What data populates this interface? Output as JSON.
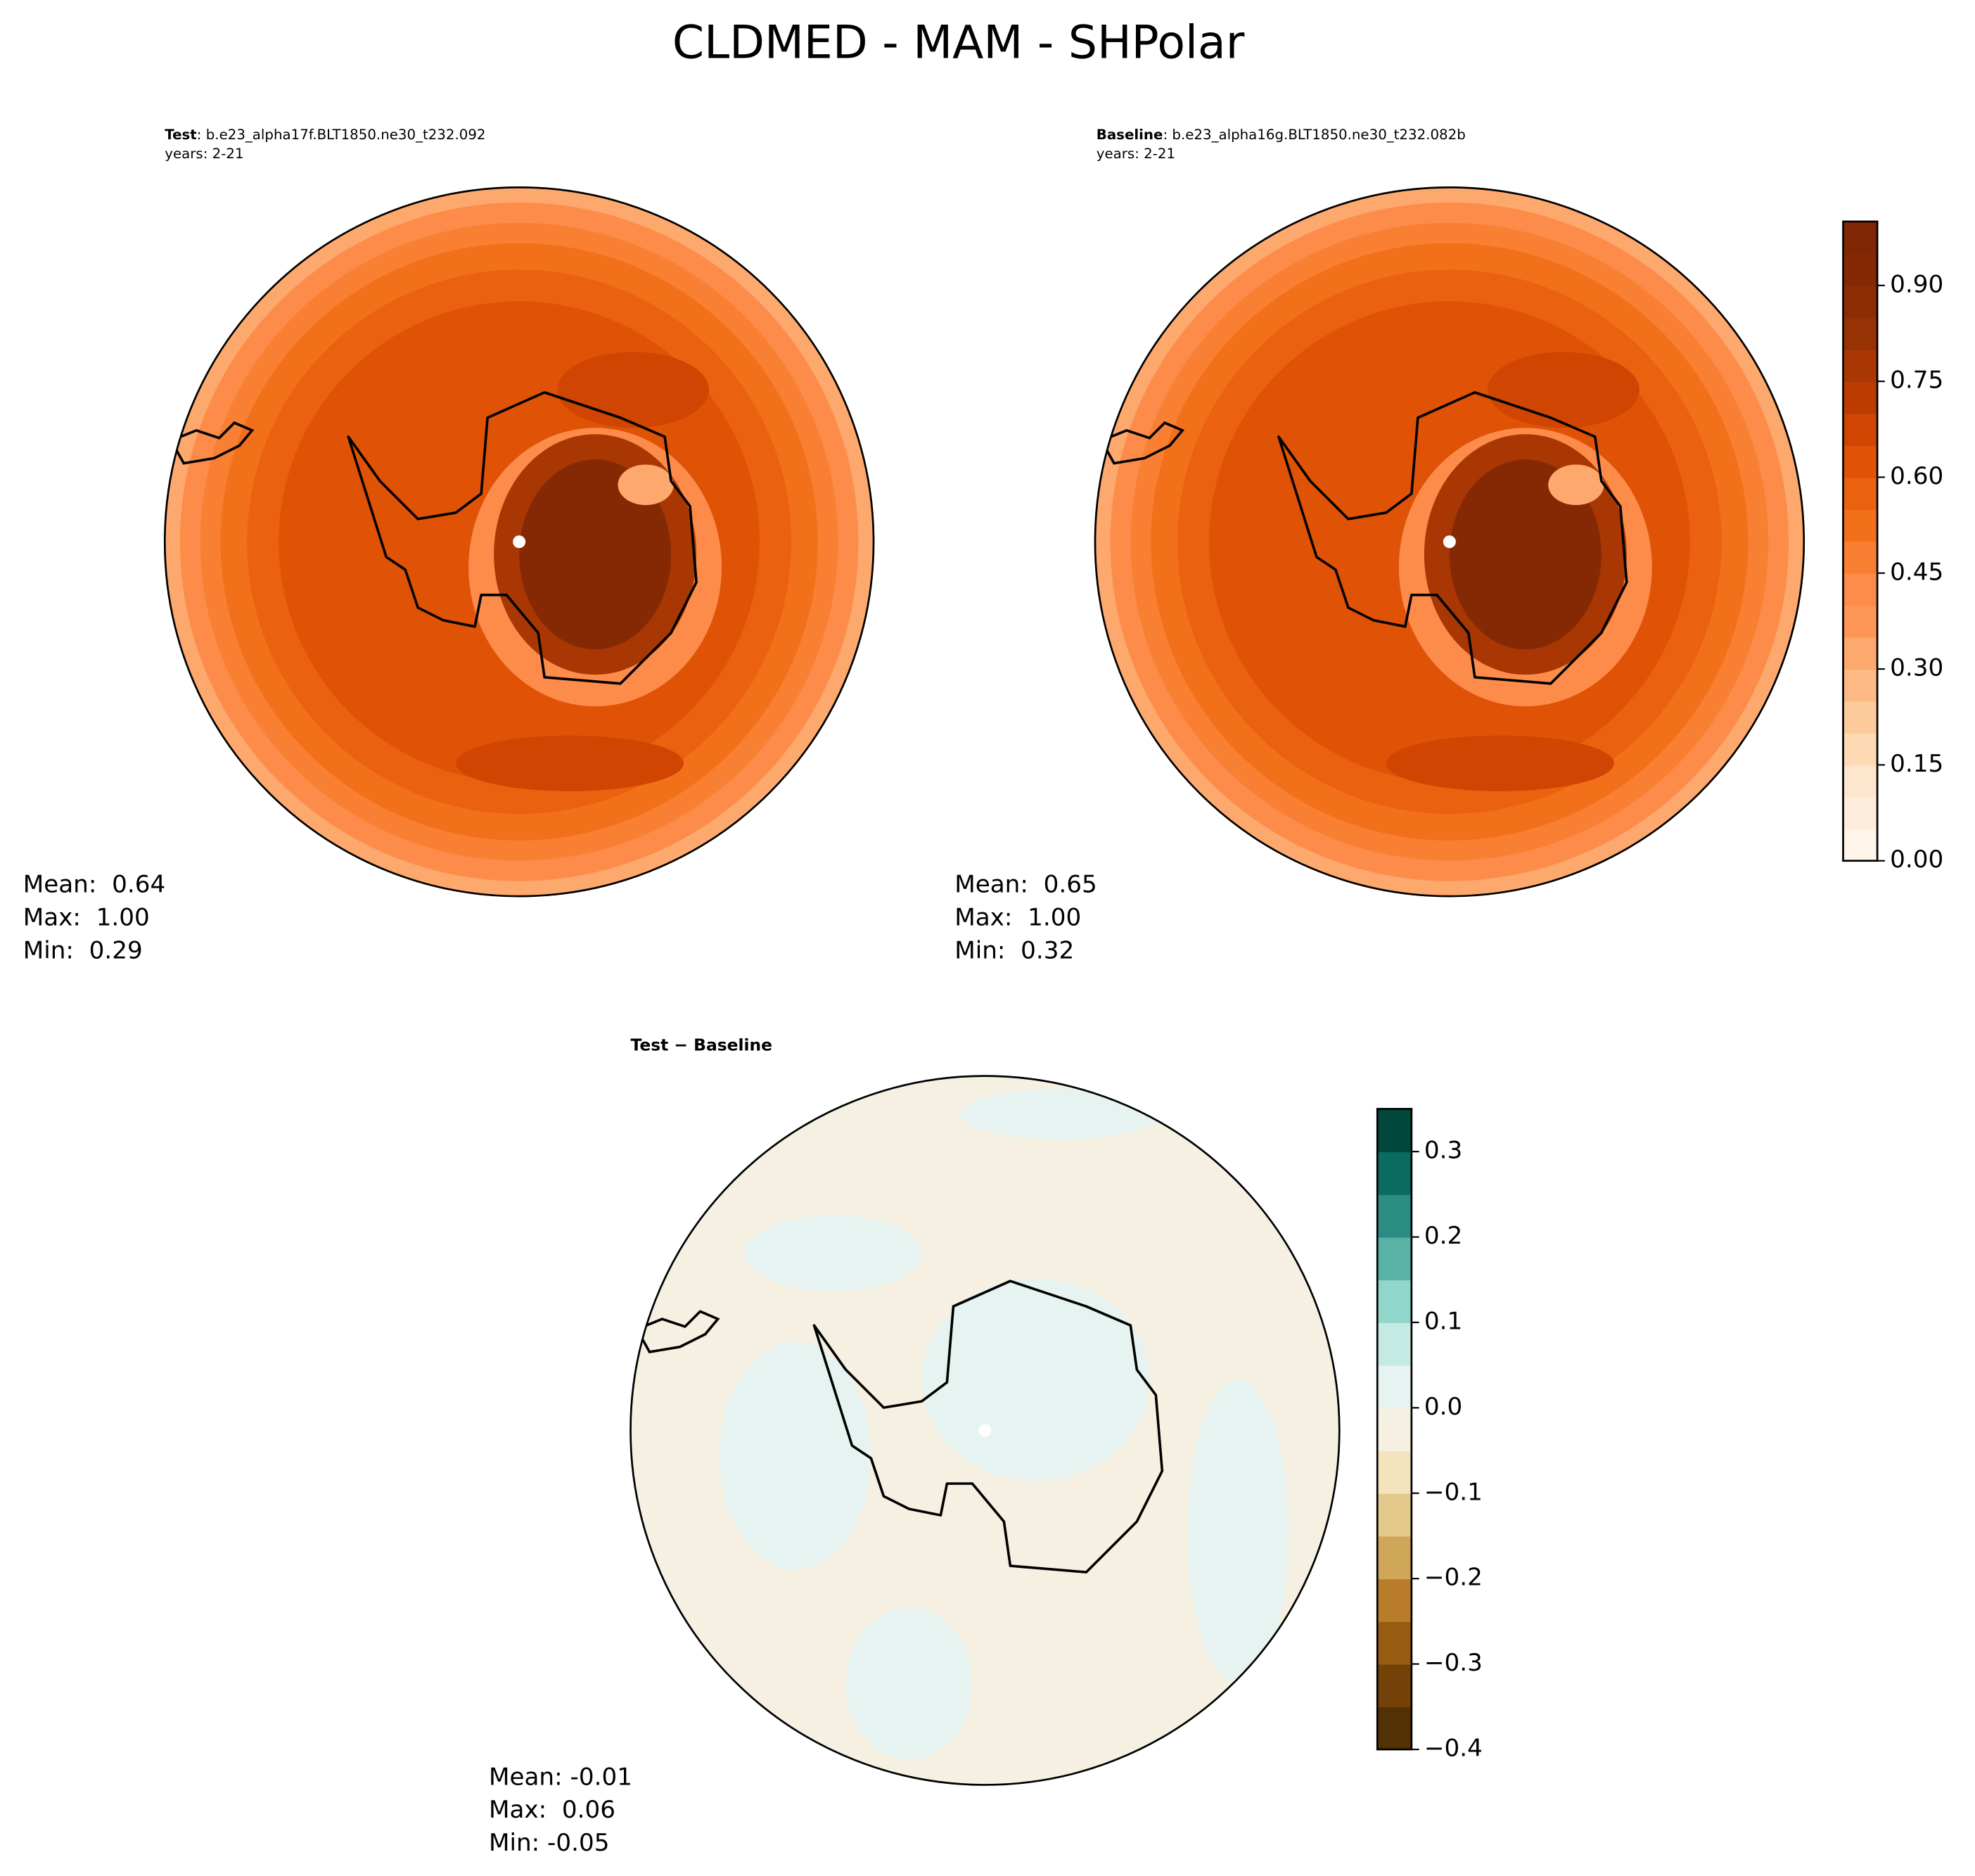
{
  "title": "CLDMED - MAM - SHPolar",
  "panels": [
    {
      "label": "Test",
      "case": ": b.e23_alpha17f.BLT1850.ne30_t232.092",
      "years": "years: 2-21",
      "stats": [
        "Mean:  0.64",
        "Max:  1.00",
        "Min:  0.29"
      ]
    },
    {
      "label": "Baseline",
      "case": ": b.e23_alpha16g.BLT1850.ne30_t232.082b",
      "years": "years: 2-21",
      "stats": [
        "Mean:  0.65",
        "Max:  1.00",
        "Min:  0.32"
      ]
    },
    {
      "label": "Test − Baseline",
      "stats": [
        "Mean: -0.01",
        "Max:  0.06",
        "Min: -0.05"
      ]
    }
  ],
  "colorbars": [
    {
      "lim": [
        0,
        1
      ],
      "ticks": [
        {
          "value": 0,
          "label": "0.00"
        },
        0.15,
        {
          "value": 0.3,
          "label": "0.30"
        },
        0.45,
        {
          "value": 0.6,
          "label": "0.60"
        },
        0.75,
        {
          "value": 0.9,
          "label": "0.90"
        }
      ],
      "colors": [
        "#fff5eb",
        "#feeddc",
        "#fee6ce",
        "#fdd9b4",
        "#fdcb9b",
        "#fdba84",
        "#fda86d",
        "#fd9657",
        "#fd8c4b",
        "#f98033",
        "#f3701b",
        "#ea6110",
        "#e05206",
        "#d04501",
        "#bc3c02",
        "#a83703",
        "#963203",
        "#8c2d04",
        "#852904",
        "#7f2704"
      ]
    },
    {
      "lim": [
        -0.4,
        0.35
      ],
      "ticks": [
        {
          "value": -0.4,
          "label": "−0.4"
        },
        {
          "value": -0.3,
          "label": "−0.3"
        },
        {
          "value": -0.2,
          "label": "−0.2"
        },
        {
          "value": -0.1,
          "label": "−0.1"
        },
        {
          "value": 0,
          "label": "0.0"
        },
        0.1,
        0.2,
        0.3
      ],
      "colors": [
        "#543005",
        "#744209",
        "#955c12",
        "#b97c2a",
        "#d0a659",
        "#e4c98c",
        "#f3e4bd",
        "#f5f0e2",
        "#e6f3f1",
        "#c5eae4",
        "#90d6ca",
        "#58b2a6",
        "#2a8c82",
        "#0b6b61",
        "#01473b"
      ]
    }
  ]
}
